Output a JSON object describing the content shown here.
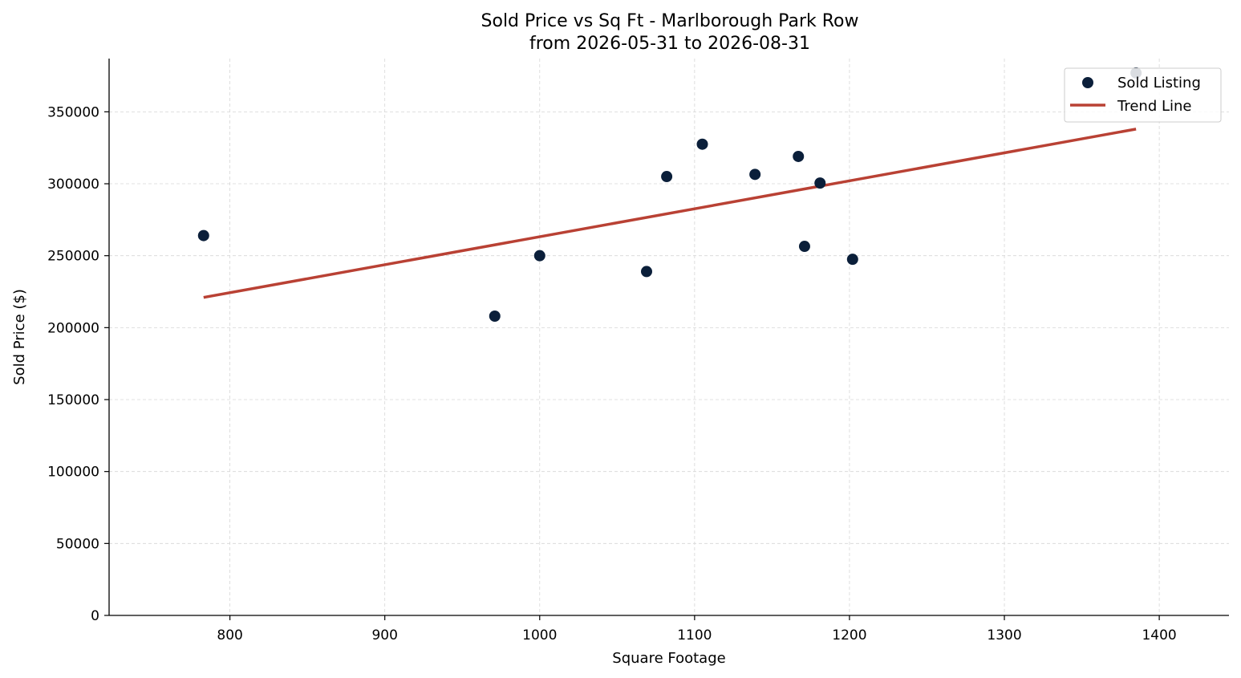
{
  "chart_data": {
    "type": "scatter",
    "title": "Sold Price vs Sq Ft - Marlborough Park Row",
    "subtitle": "from 2026-05-31 to 2026-08-31",
    "xlabel": "Square Footage",
    "ylabel": "Sold Price ($)",
    "xlim": [
      722,
      1445
    ],
    "ylim": [
      0,
      387000
    ],
    "xticks": [
      800,
      900,
      1000,
      1100,
      1200,
      1300,
      1400
    ],
    "yticks": [
      0,
      50000,
      100000,
      150000,
      200000,
      250000,
      300000,
      350000
    ],
    "grid": true,
    "legend_position": "top-right",
    "series": [
      {
        "name": "Sold Listing",
        "kind": "scatter",
        "color": "#0b1f3a",
        "points": [
          {
            "x": 783,
            "y": 264000
          },
          {
            "x": 971,
            "y": 208000
          },
          {
            "x": 1000,
            "y": 250000
          },
          {
            "x": 1069,
            "y": 239000
          },
          {
            "x": 1082,
            "y": 305000
          },
          {
            "x": 1105,
            "y": 327500
          },
          {
            "x": 1139,
            "y": 306500
          },
          {
            "x": 1167,
            "y": 319000
          },
          {
            "x": 1171,
            "y": 256500
          },
          {
            "x": 1181,
            "y": 300500
          },
          {
            "x": 1202,
            "y": 247500
          },
          {
            "x": 1385,
            "y": 377000
          }
        ]
      },
      {
        "name": "Trend Line",
        "kind": "line",
        "color": "#b94134",
        "points": [
          {
            "x": 783,
            "y": 221000
          },
          {
            "x": 1385,
            "y": 338000
          }
        ]
      }
    ]
  }
}
